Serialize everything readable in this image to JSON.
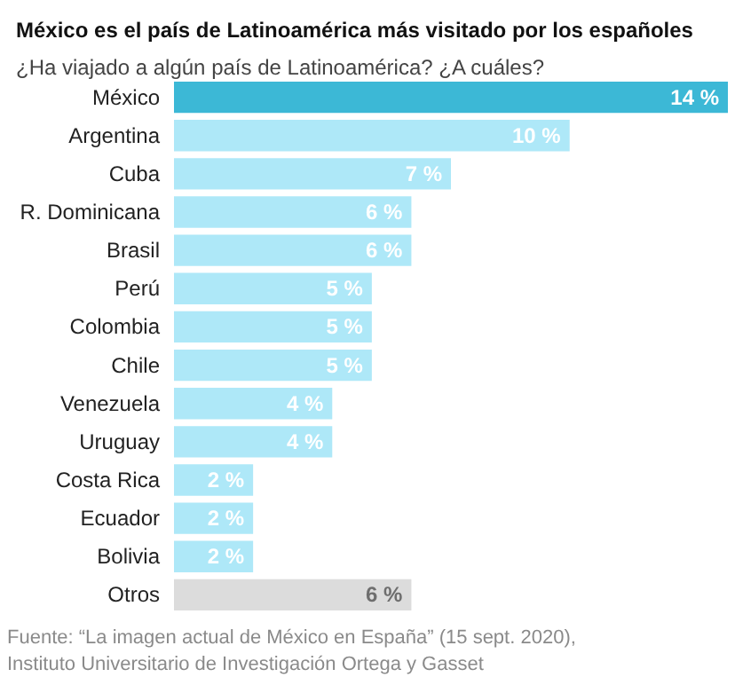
{
  "chart_data": {
    "type": "bar",
    "orientation": "horizontal",
    "title": "México es el país de Latinoamérica más visitado por los españoles",
    "subtitle": "¿Ha viajado a algún país de Latinoamérica? ¿A cuáles?",
    "categories": [
      "México",
      "Argentina",
      "Cuba",
      "R. Dominicana",
      "Brasil",
      "Perú",
      "Colombia",
      "Chile",
      "Venezuela",
      "Uruguay",
      "Costa Rica",
      "Ecuador",
      "Bolivia",
      "Otros"
    ],
    "values": [
      14,
      10,
      7,
      6,
      6,
      5,
      5,
      5,
      4,
      4,
      2,
      2,
      2,
      6
    ],
    "value_labels": [
      "14 %",
      "10 %",
      "7 %",
      "6 %",
      "6 %",
      "5 %",
      "5 %",
      "5 %",
      "4 %",
      "4 %",
      "2 %",
      "2 %",
      "2 %",
      "6 %"
    ],
    "colors": [
      "#3cb8d6",
      "#aee8f8",
      "#aee8f8",
      "#aee8f8",
      "#aee8f8",
      "#aee8f8",
      "#aee8f8",
      "#aee8f8",
      "#aee8f8",
      "#aee8f8",
      "#aee8f8",
      "#aee8f8",
      "#aee8f8",
      "#dcdcdc"
    ],
    "annotations": [
      "Fuente: “La imagen actual de México en España” (15 sept. 2020),",
      "Instituto Universitario de Investigación Ortega y Gasset"
    ],
    "grid": false
  }
}
